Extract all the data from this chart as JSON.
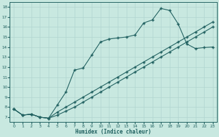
{
  "bg_color": "#c8e8e0",
  "line_color": "#206060",
  "grid_color": "#b0d4d0",
  "xlabel": "Humidex (Indice chaleur)",
  "xlim": [
    -0.5,
    23.5
  ],
  "ylim": [
    6.5,
    18.5
  ],
  "xtick_vals": [
    0,
    1,
    2,
    3,
    4,
    5,
    6,
    7,
    8,
    9,
    10,
    11,
    12,
    13,
    14,
    15,
    16,
    17,
    18,
    19,
    20,
    21,
    22,
    23
  ],
  "ytick_vals": [
    7,
    8,
    9,
    10,
    11,
    12,
    13,
    14,
    15,
    16,
    17,
    18
  ],
  "curve1_x": [
    0,
    1,
    2,
    3,
    4,
    5,
    6,
    7,
    8,
    9,
    10,
    11,
    12,
    13,
    14,
    15,
    16,
    17,
    18,
    19,
    20,
    21,
    22,
    23
  ],
  "curve1_y": [
    7.8,
    7.2,
    7.3,
    7.0,
    6.9,
    8.2,
    9.5,
    11.7,
    11.9,
    13.2,
    14.5,
    14.8,
    14.9,
    15.0,
    15.2,
    16.4,
    16.7,
    17.85,
    17.65,
    16.3,
    14.3,
    13.85,
    13.95,
    14.0
  ],
  "curve2_x": [
    0,
    1,
    2,
    3,
    4,
    5,
    6,
    7,
    8,
    9,
    10,
    11,
    12,
    13,
    14,
    15,
    16,
    17,
    18,
    19,
    20,
    21,
    22,
    23
  ],
  "curve2_y": [
    7.8,
    7.2,
    7.3,
    7.0,
    6.9,
    7.5,
    8.0,
    8.5,
    9.0,
    9.5,
    10.0,
    10.5,
    11.0,
    11.5,
    12.0,
    12.5,
    13.0,
    13.5,
    14.0,
    14.5,
    15.0,
    15.5,
    16.0,
    16.5
  ],
  "curve3_x": [
    0,
    1,
    2,
    3,
    4,
    5,
    6,
    7,
    8,
    9,
    10,
    11,
    12,
    13,
    14,
    15,
    16,
    17,
    18,
    19,
    20,
    21,
    22,
    23
  ],
  "curve3_y": [
    7.8,
    7.2,
    7.3,
    7.0,
    6.9,
    7.2,
    7.6,
    8.0,
    8.5,
    9.0,
    9.5,
    10.0,
    10.5,
    11.0,
    11.5,
    12.0,
    12.5,
    13.0,
    13.5,
    14.0,
    14.5,
    15.0,
    15.5,
    16.0
  ]
}
